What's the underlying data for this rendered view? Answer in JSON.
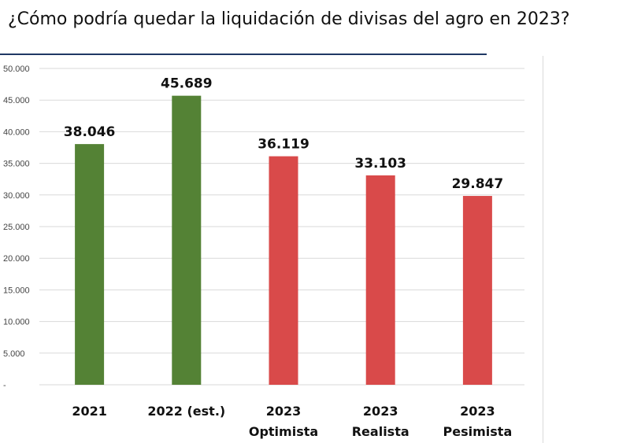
{
  "chart_data": {
    "type": "bar",
    "title": "¿Cómo podría quedar la liquidación de divisas del agro en 2023?",
    "categories": [
      [
        "2021"
      ],
      [
        "2022 (est.)"
      ],
      [
        "2023",
        "Optimista"
      ],
      [
        "2023",
        "Realista"
      ],
      [
        "2023",
        "Pesimista"
      ]
    ],
    "values": [
      38046,
      45689,
      36119,
      33103,
      29847
    ],
    "value_labels": [
      "38.046",
      "45.689",
      "36.119",
      "33.103",
      "29.847"
    ],
    "colors": [
      "#548235",
      "#548235",
      "#d94a4a",
      "#d94a4a",
      "#d94a4a"
    ],
    "ylim": [
      0,
      50000
    ],
    "ytick_values": [
      0,
      5000,
      10000,
      15000,
      20000,
      25000,
      30000,
      35000,
      40000,
      45000,
      50000
    ],
    "ytick_labels": [
      "-",
      "5.000",
      "10.000",
      "15.000",
      "20.000",
      "25.000",
      "30.000",
      "35.000",
      "40.000",
      "45.000",
      "50.000"
    ],
    "grid": true,
    "gridline_color": "#d9d9d9",
    "xlabel": "",
    "ylabel": ""
  }
}
